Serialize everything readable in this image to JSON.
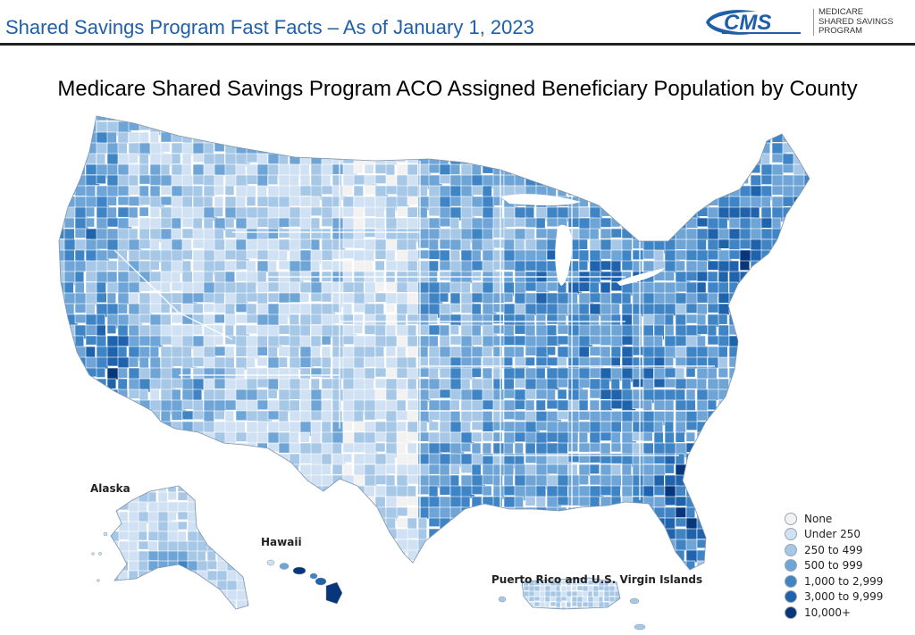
{
  "header": {
    "title": "Shared Savings Program Fast Facts – As of January 1, 2023",
    "logo_text": "CMS",
    "program_lines": [
      "MEDICARE",
      "SHARED SAVINGS",
      "PROGRAM"
    ]
  },
  "map": {
    "title": "Medicare Shared Savings Program ACO Assigned Beneficiary Population by County",
    "insets": {
      "alaska": "Alaska",
      "hawaii": "Hawaii",
      "puerto_rico": "Puerto Rico and U.S. Virgin Islands"
    },
    "legend": [
      {
        "label": "None",
        "color": "#f2f2f2"
      },
      {
        "label": "Under 250",
        "color": "#cfe1f2"
      },
      {
        "label": "250 to 499",
        "color": "#a6c8e6"
      },
      {
        "label": "500 to 999",
        "color": "#6fa5d6"
      },
      {
        "label": "1,000 to 2,999",
        "color": "#3f84c4"
      },
      {
        "label": "3,000 to 9,999",
        "color": "#1f63ad"
      },
      {
        "label": "10,000+",
        "color": "#08367a"
      }
    ]
  },
  "colors": {
    "header_title": "#1f5fa8",
    "border": "#ffffff"
  }
}
